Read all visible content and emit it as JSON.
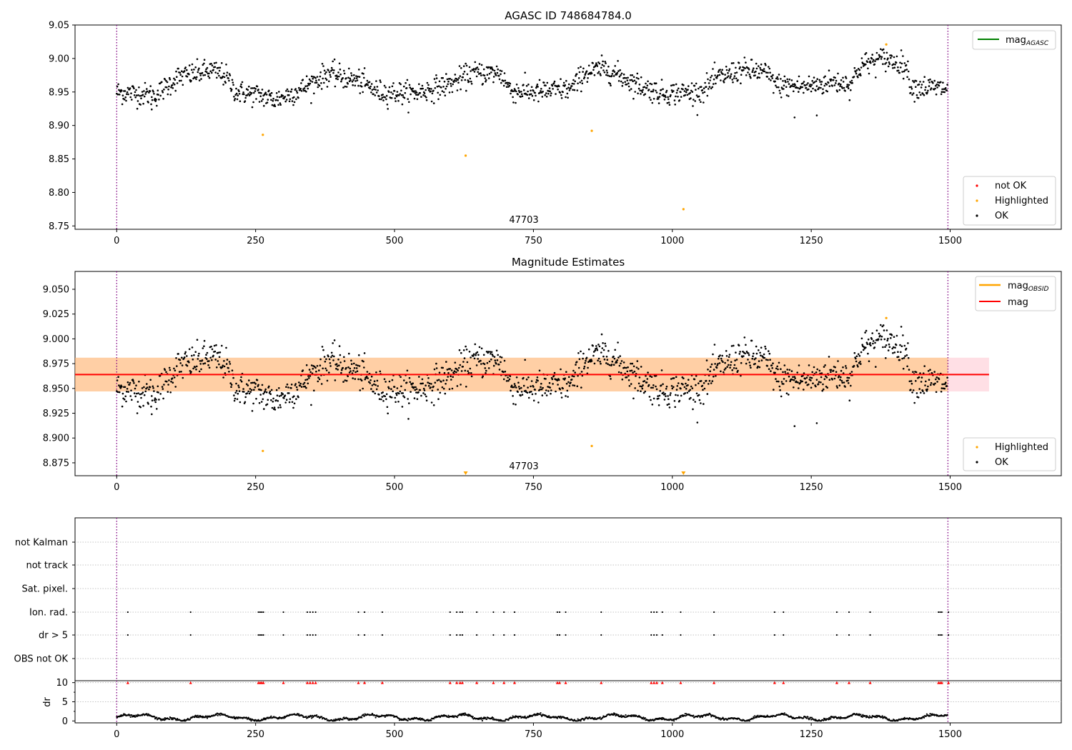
{
  "chart_data": [
    {
      "type": "scatter",
      "title": "AGASC ID 748684784.0",
      "xlim": [
        -75,
        1700
      ],
      "ylim": [
        8.745,
        9.05
      ],
      "x_ticks": [
        0,
        250,
        500,
        750,
        1000,
        1250,
        1500
      ],
      "y_ticks": [
        8.75,
        8.8,
        8.85,
        8.9,
        8.95,
        9.0,
        9.05
      ],
      "y_tick_labels": [
        "8.75",
        "8.80",
        "8.85",
        "8.90",
        "8.95",
        "9.00",
        "9.05"
      ],
      "vlines": [
        0,
        1496
      ],
      "obsid_label": {
        "text": "47703",
        "x": 750
      },
      "legend_top": [
        {
          "label": "mag",
          "sub": "AGASC",
          "color": "#008000"
        }
      ],
      "legend_bottom": [
        {
          "label": "not OK",
          "color": "#ff0000"
        },
        {
          "label": "Highlighted",
          "color": "#ffa500"
        },
        {
          "label": "OK",
          "color": "#000000"
        }
      ],
      "highlighted": [
        [
          263,
          8.886
        ],
        [
          628,
          8.855
        ],
        [
          855,
          8.892
        ],
        [
          1020,
          8.775
        ],
        [
          1385,
          9.021
        ]
      ],
      "ok_series": {
        "n": 1496,
        "base": 8.964,
        "segments": [
          [
            0,
            8.95
          ],
          [
            70,
            8.945
          ],
          [
            110,
            8.972
          ],
          [
            170,
            8.982
          ],
          [
            195,
            8.975
          ],
          [
            215,
            8.95
          ],
          [
            260,
            8.945
          ],
          [
            285,
            8.938
          ],
          [
            330,
            8.953
          ],
          [
            380,
            8.978
          ],
          [
            440,
            8.965
          ],
          [
            470,
            8.95
          ],
          [
            530,
            8.948
          ],
          [
            560,
            8.953
          ],
          [
            600,
            8.962
          ],
          [
            640,
            8.978
          ],
          [
            690,
            8.978
          ],
          [
            710,
            8.952
          ],
          [
            760,
            8.95
          ],
          [
            820,
            8.955
          ],
          [
            840,
            8.978
          ],
          [
            880,
            8.985
          ],
          [
            940,
            8.96
          ],
          [
            980,
            8.948
          ],
          [
            1050,
            8.95
          ],
          [
            1080,
            8.97
          ],
          [
            1120,
            8.982
          ],
          [
            1165,
            8.98
          ],
          [
            1190,
            8.96
          ],
          [
            1240,
            8.958
          ],
          [
            1290,
            8.965
          ],
          [
            1320,
            8.962
          ],
          [
            1340,
            8.99
          ],
          [
            1380,
            9.0
          ],
          [
            1420,
            8.99
          ],
          [
            1430,
            8.958
          ],
          [
            1496,
            8.955
          ]
        ],
        "outliers": [
          [
            1220,
            8.912
          ],
          [
            1260,
            8.915
          ],
          [
            63,
            8.924
          ]
        ]
      }
    },
    {
      "type": "scatter",
      "title": "Magnitude Estimates",
      "xlim": [
        -75,
        1700
      ],
      "ylim": [
        8.862,
        9.068
      ],
      "x_ticks": [
        0,
        250,
        500,
        750,
        1000,
        1250,
        1500
      ],
      "y_ticks": [
        8.875,
        8.9,
        8.925,
        8.95,
        8.975,
        9.0,
        9.025,
        9.05
      ],
      "y_tick_labels": [
        "8.875",
        "8.900",
        "8.925",
        "8.950",
        "8.975",
        "9.000",
        "9.025",
        "9.050"
      ],
      "vlines": [
        0,
        1496
      ],
      "obsid_label": {
        "text": "47703",
        "x": 750
      },
      "mag_line": {
        "y": 8.964,
        "x_range": [
          -75,
          1570
        ],
        "color": "#ff0000"
      },
      "mag_band": {
        "y_range": [
          8.947,
          8.981
        ],
        "x_range": [
          -75,
          1570
        ]
      },
      "obsid_band": {
        "y_range": [
          8.947,
          8.981
        ],
        "x_range": [
          -75,
          1496
        ]
      },
      "legend_top": [
        {
          "label": "mag",
          "sub": "OBSID",
          "color": "#ffa500"
        },
        {
          "label": "mag",
          "sub": "",
          "color": "#ff0000"
        }
      ],
      "legend_bottom": [
        {
          "label": "Highlighted",
          "color": "#ffa500"
        },
        {
          "label": "OK",
          "color": "#000000"
        }
      ],
      "highlighted": [
        [
          263,
          8.887
        ],
        [
          855,
          8.892
        ],
        [
          1385,
          9.021
        ]
      ],
      "clipped_markers": [
        628,
        1020
      ]
    },
    {
      "type": "scatter",
      "title": "",
      "xlim": [
        -75,
        1700
      ],
      "x_ticks": [
        0,
        250,
        500,
        750,
        1000,
        1250,
        1500
      ],
      "vlines": [
        0,
        1496
      ],
      "flag_rows": [
        "not Kalman",
        "not track",
        "Sat. pixel.",
        "Ion. rad.",
        "dr > 5",
        "OBS not OK"
      ],
      "flag_x": [
        20,
        133,
        255,
        258,
        261,
        264,
        300,
        343,
        348,
        353,
        358,
        435,
        446,
        478,
        600,
        612,
        618,
        622,
        648,
        678,
        697,
        716,
        793,
        797,
        808,
        872,
        962,
        967,
        972,
        982,
        1015,
        1075,
        1184,
        1200,
        1296,
        1318,
        1356,
        1479,
        1482,
        1485,
        1497
      ],
      "dr_label": "dr",
      "dr_ticks": [
        0,
        5,
        10
      ],
      "dr_ylim": [
        -0.5,
        10.5
      ]
    }
  ]
}
